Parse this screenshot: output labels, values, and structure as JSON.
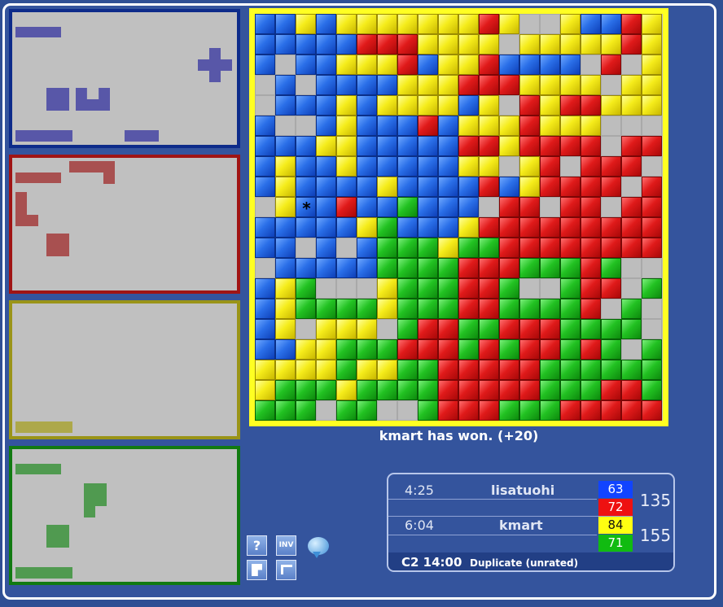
{
  "status": {
    "message": "kmart has won. (+20)"
  },
  "score": {
    "players": [
      {
        "time": "4:25",
        "name": "lisatuohi",
        "colors": [
          {
            "score": "63",
            "color": "#1144ff"
          },
          {
            "score": "72",
            "color": "#ee1111"
          }
        ],
        "total": "135"
      },
      {
        "time": "6:04",
        "name": "kmart",
        "colors": [
          {
            "score": "84",
            "color": "#ffff11"
          },
          {
            "score": "71",
            "color": "#11bb11"
          }
        ],
        "total": "155"
      }
    ],
    "game_code": "C2 14:00",
    "game_mode": "Duplicate (unrated)"
  },
  "toolbar": {
    "help_label": "?",
    "inventory_label": "INV",
    "buttons": [
      "help-icon",
      "inventory-icon",
      "chat-bubble-icon",
      "piece-icon",
      "chair-icon"
    ]
  },
  "board": {
    "size": 20,
    "marker": "*",
    "legend": {
      "0": "empty",
      "B": "blue",
      "R": "red",
      "Y": "yellow",
      "G": "green"
    },
    "rows": [
      "BBYBYYYYYYYRY00YBBRY",
      "BBBBBRRRYYYY0YYYYYRY",
      "B0BBYYYRBYYRBBBB0R0Y",
      "0B0BBBBYYYRRRYYYY0YY",
      "0BBBYBYYYYBY0RYRRYYY",
      "B00BYBBBRBYYYRYYY000",
      "BBBYYBBBBBRRYRRRR0RR",
      "BYBBYBBBBBYY0YR0RRR0",
      "BYBBBBYBBBBRBYRRRR0R",
      "0YBBRBBGBBB0RR0RR0RR",
      "BBBBBYGBBBYRRRRRRRRR",
      "BB0B0BGGGYGGRRRRRRRR",
      "0BBBBBGGGGRRRGGGRG00",
      "BYG000YGGGRRG00GRR0G",
      "BYGGGGYGGGRRGGGGR0G0",
      "BY0YYY0GRRGGRRRGGGG0",
      "BBYYGGGRRRGRGRRGRG0G",
      "YYYYGYYGGRRRRRGGGGGG",
      "YGGGYGGGGRRRRRGGGRRG",
      "GGG0GG00GRRRGGGRRRRR"
    ]
  },
  "panels": [
    {
      "player": "blue",
      "border": "#0d2b8a",
      "fill": "#5857a8"
    },
    {
      "player": "red",
      "border": "#a01414",
      "fill": "#a85050"
    },
    {
      "player": "yellow",
      "border": "#9a9418",
      "fill": "#ada84a"
    },
    {
      "player": "green",
      "border": "#117a11",
      "fill": "#509a50"
    }
  ]
}
